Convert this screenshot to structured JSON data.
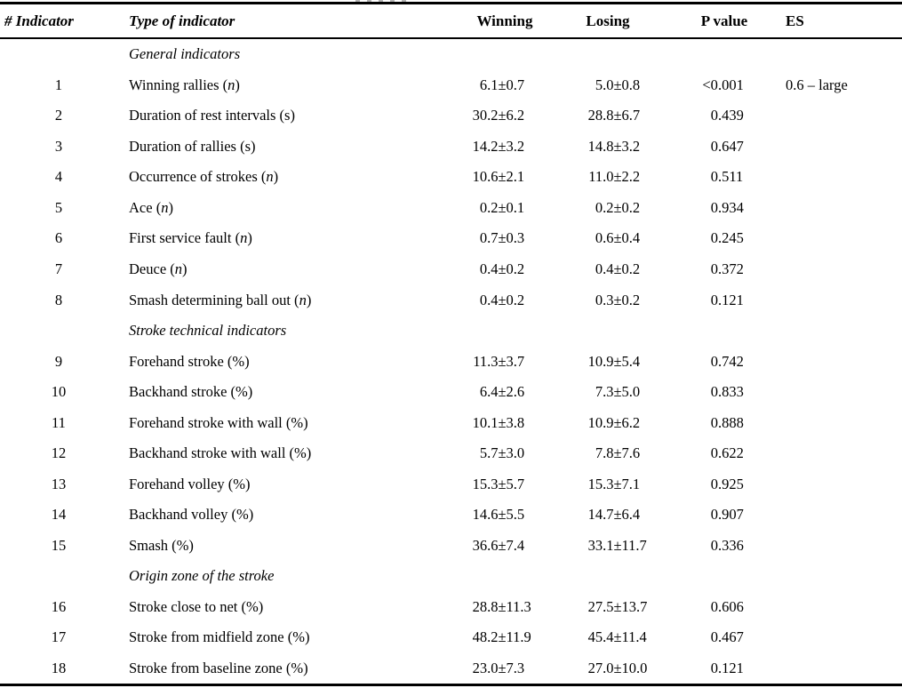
{
  "colors": {
    "background": "#ffffff",
    "text": "#000000",
    "rule_line": "#000000"
  },
  "table": {
    "headers": {
      "col_num": "# Indicator",
      "col_type": "Type of indicator",
      "col_winning": "Winning",
      "col_losing": "Losing",
      "col_p": "P value",
      "col_es": "ES"
    },
    "rows": [
      {
        "kind": "section",
        "label": "General indicators"
      },
      {
        "kind": "data",
        "num": "1",
        "name_pre": "Winning rallies (",
        "name_var": "n",
        "name_post": ")",
        "winning": "6.1±0.7",
        "losing": "5.0±0.8",
        "p": "<0.001",
        "es": "0.6 – large"
      },
      {
        "kind": "data",
        "num": "2",
        "name_pre": "Duration of rest intervals (s)",
        "name_var": "",
        "name_post": "",
        "winning": "30.2±6.2",
        "losing": "28.8±6.7",
        "p": "0.439",
        "es": ""
      },
      {
        "kind": "data",
        "num": "3",
        "name_pre": "Duration of rallies (s)",
        "name_var": "",
        "name_post": "",
        "winning": "14.2±3.2",
        "losing": "14.8±3.2",
        "p": "0.647",
        "es": ""
      },
      {
        "kind": "data",
        "num": "4",
        "name_pre": "Occurrence of strokes (",
        "name_var": "n",
        "name_post": ")",
        "winning": "10.6±2.1",
        "losing": "11.0±2.2",
        "p": "0.511",
        "es": ""
      },
      {
        "kind": "data",
        "num": "5",
        "name_pre": "Ace (",
        "name_var": "n",
        "name_post": ")",
        "winning": "0.2±0.1",
        "losing": "0.2±0.2",
        "p": "0.934",
        "es": ""
      },
      {
        "kind": "data",
        "num": "6",
        "name_pre": "First service fault (",
        "name_var": "n",
        "name_post": ")",
        "winning": "0.7±0.3",
        "losing": "0.6±0.4",
        "p": "0.245",
        "es": ""
      },
      {
        "kind": "data",
        "num": "7",
        "name_pre": "Deuce (",
        "name_var": "n",
        "name_post": ")",
        "winning": "0.4±0.2",
        "losing": "0.4±0.2",
        "p": "0.372",
        "es": ""
      },
      {
        "kind": "data",
        "num": "8",
        "name_pre": "Smash determining ball out (",
        "name_var": "n",
        "name_post": ")",
        "winning": "0.4±0.2",
        "losing": "0.3±0.2",
        "p": "0.121",
        "es": ""
      },
      {
        "kind": "section",
        "label": "Stroke technical indicators"
      },
      {
        "kind": "data",
        "num": "9",
        "name_pre": "Forehand stroke (%)",
        "name_var": "",
        "name_post": "",
        "winning": "11.3±3.7",
        "losing": "10.9±5.4",
        "p": "0.742",
        "es": ""
      },
      {
        "kind": "data",
        "num": "10",
        "name_pre": "Backhand stroke (%)",
        "name_var": "",
        "name_post": "",
        "winning": "6.4±2.6",
        "losing": "7.3±5.0",
        "p": "0.833",
        "es": ""
      },
      {
        "kind": "data",
        "num": "11",
        "name_pre": "Forehand stroke with wall (%)",
        "name_var": "",
        "name_post": "",
        "winning": "10.1±3.8",
        "losing": "10.9±6.2",
        "p": "0.888",
        "es": ""
      },
      {
        "kind": "data",
        "num": "12",
        "name_pre": "Backhand stroke with wall (%)",
        "name_var": "",
        "name_post": "",
        "winning": "5.7±3.0",
        "losing": "7.8±7.6",
        "p": "0.622",
        "es": ""
      },
      {
        "kind": "data",
        "num": "13",
        "name_pre": "Forehand volley (%)",
        "name_var": "",
        "name_post": "",
        "winning": "15.3±5.7",
        "losing": "15.3±7.1",
        "p": "0.925",
        "es": ""
      },
      {
        "kind": "data",
        "num": "14",
        "name_pre": "Backhand volley (%)",
        "name_var": "",
        "name_post": "",
        "winning": "14.6±5.5",
        "losing": "14.7±6.4",
        "p": "0.907",
        "es": ""
      },
      {
        "kind": "data",
        "num": "15",
        "name_pre": "Smash (%)",
        "name_var": "",
        "name_post": "",
        "winning": "36.6±7.4",
        "losing": "33.1±11.7",
        "p": "0.336",
        "es": ""
      },
      {
        "kind": "section",
        "label": "Origin zone of the stroke"
      },
      {
        "kind": "data",
        "num": "16",
        "name_pre": "Stroke close to net (%)",
        "name_var": "",
        "name_post": "",
        "winning": "28.8±11.3",
        "losing": "27.5±13.7",
        "p": "0.606",
        "es": ""
      },
      {
        "kind": "data",
        "num": "17",
        "name_pre": "Stroke from midfield zone (%)",
        "name_var": "",
        "name_post": "",
        "winning": "48.2±11.9",
        "losing": "45.4±11.4",
        "p": "0.467",
        "es": ""
      },
      {
        "kind": "data",
        "num": "18",
        "name_pre": "Stroke from baseline zone (%)",
        "name_var": "",
        "name_post": "",
        "winning": "23.0±7.3",
        "losing": "27.0±10.0",
        "p": "0.121",
        "es": ""
      }
    ]
  }
}
